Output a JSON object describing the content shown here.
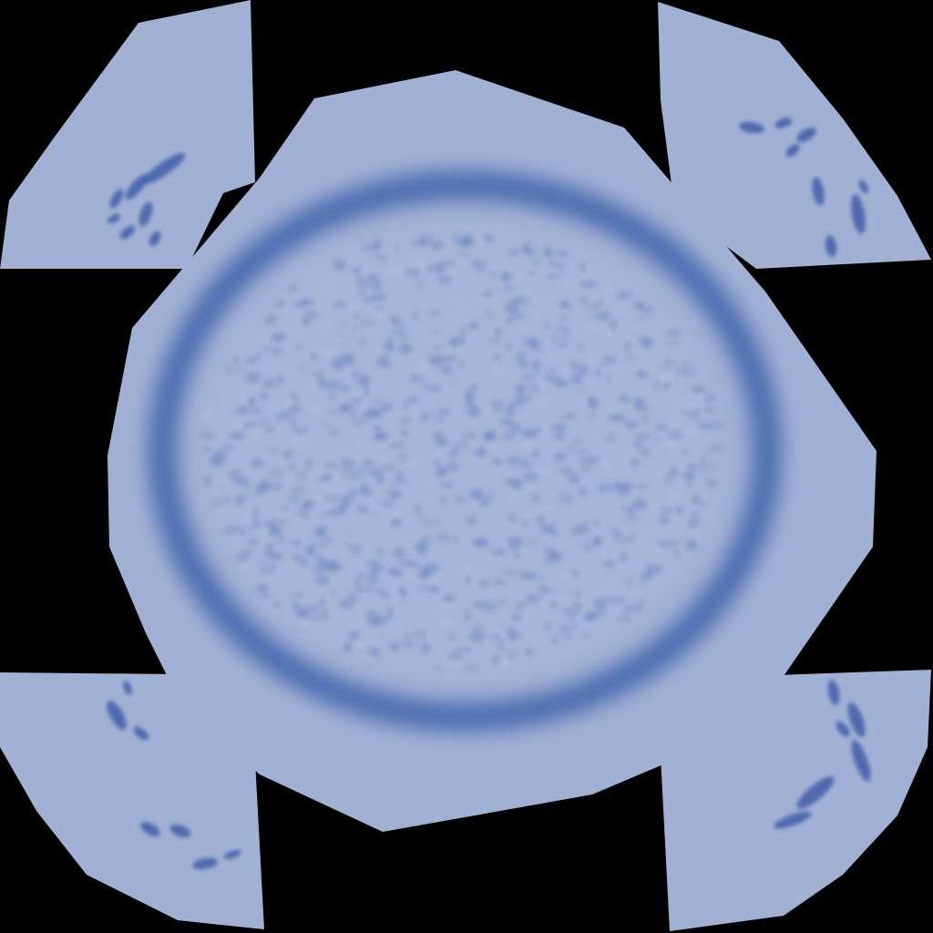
{
  "texture": {
    "background_color": "#000000",
    "base_color": "#a1b1d4",
    "ring_color": "#4566ad",
    "speckle_color": "#6b86c1",
    "highlight_color": "#b2c1e0",
    "mark_color": "#3f5ea9",
    "shapes": [
      "center-panel",
      "top-left-panel",
      "top-right-panel",
      "bottom-left-panel",
      "bottom-right-panel"
    ]
  }
}
